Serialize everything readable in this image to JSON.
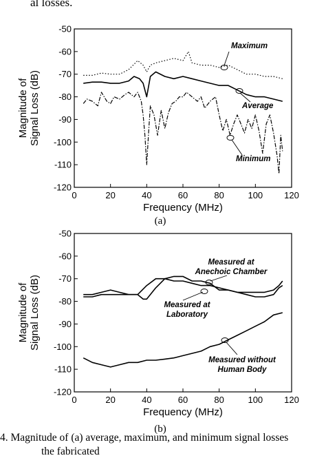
{
  "top_text": "al losses.",
  "caption_line1": "4. Magnitude of (a) average, maximum, and minimum signal losses",
  "caption_line2": "the fabricated",
  "chart_data": [
    {
      "type": "line",
      "panel_label": "(a)",
      "xlabel": "Frequency (MHz)",
      "ylabel": "Magnitude of Signal Loss (dB)",
      "ylabel_line1": "Magnitude of",
      "ylabel_line2": "Signal Loss (dB)",
      "xlim": [
        0,
        120
      ],
      "ylim": [
        -120,
        -50
      ],
      "xticks": [
        0,
        20,
        40,
        60,
        80,
        100,
        120
      ],
      "yticks": [
        -50,
        -60,
        -70,
        -80,
        -90,
        -100,
        -110,
        -120
      ],
      "grid": false,
      "series": [
        {
          "name": "Maximum",
          "style": "dotted",
          "x": [
            5,
            10,
            15,
            20,
            25,
            30,
            35,
            38,
            40,
            42,
            45,
            50,
            55,
            60,
            63,
            65,
            70,
            75,
            80,
            85,
            90,
            95,
            100,
            105,
            110,
            115
          ],
          "y": [
            -70.5,
            -70.5,
            -69.5,
            -70,
            -70,
            -68,
            -64,
            -66,
            -69,
            -66,
            -65,
            -64,
            -63,
            -64,
            -60,
            -65,
            -66,
            -66,
            -67,
            -66,
            -68,
            -70,
            -70,
            -71,
            -71,
            -72
          ]
        },
        {
          "name": "Average",
          "style": "solid",
          "x": [
            5,
            10,
            15,
            20,
            25,
            30,
            33,
            36,
            38,
            40,
            42,
            45,
            50,
            55,
            60,
            65,
            70,
            75,
            80,
            85,
            90,
            95,
            100,
            105,
            110,
            115
          ],
          "y": [
            -74,
            -73.5,
            -73.5,
            -74,
            -74,
            -73,
            -71,
            -72,
            -74,
            -80,
            -71,
            -69,
            -71,
            -72,
            -71,
            -72,
            -73,
            -74,
            -75,
            -75,
            -77,
            -79,
            -80,
            -80,
            -81,
            -82
          ]
        },
        {
          "name": "Minimum",
          "style": "dashdot",
          "x": [
            5,
            7,
            10,
            13,
            15,
            18,
            20,
            22,
            25,
            28,
            30,
            33,
            35,
            37,
            38,
            39,
            40,
            41,
            42,
            44,
            46,
            48,
            50,
            52,
            54,
            56,
            58,
            60,
            62,
            65,
            68,
            70,
            72,
            75,
            78,
            80,
            82,
            84,
            86,
            88,
            90,
            92,
            94,
            96,
            98,
            100,
            102,
            104,
            106,
            108,
            110,
            112,
            113,
            114,
            115
          ],
          "y": [
            -83,
            -81,
            -82,
            -84,
            -78,
            -82,
            -83,
            -80,
            -81,
            -79,
            -78,
            -80,
            -78,
            -82,
            -88,
            -97,
            -110,
            -96,
            -84,
            -88,
            -97,
            -86,
            -94,
            -87,
            -83,
            -82,
            -80,
            -80,
            -78,
            -80,
            -82,
            -80,
            -85,
            -82,
            -80,
            -88,
            -95,
            -90,
            -97,
            -92,
            -88,
            -92,
            -96,
            -90,
            -94,
            -88,
            -95,
            -105,
            -92,
            -88,
            -96,
            -106,
            -114,
            -97,
            -104
          ]
        }
      ],
      "annotations": [
        "Maximum",
        "Average",
        "Minimum"
      ]
    },
    {
      "type": "line",
      "panel_label": "(b)",
      "xlabel": "Frequency (MHz)",
      "ylabel": "Magnitude of Signal Loss (dB)",
      "ylabel_line1": "Magnitude of",
      "ylabel_line2": "Signal Loss (dB)",
      "xlim": [
        0,
        120
      ],
      "ylim": [
        -120,
        -50
      ],
      "xticks": [
        0,
        20,
        40,
        60,
        80,
        100,
        120
      ],
      "yticks": [
        -50,
        -60,
        -70,
        -80,
        -90,
        -100,
        -110,
        -120
      ],
      "grid": false,
      "series": [
        {
          "name": "Measured at Anechoic Chamber",
          "style": "solid",
          "x": [
            5,
            10,
            15,
            20,
            25,
            30,
            35,
            38,
            40,
            45,
            50,
            55,
            60,
            65,
            70,
            75,
            80,
            85,
            90,
            95,
            100,
            105,
            110,
            113,
            115
          ],
          "y": [
            -77,
            -77,
            -76,
            -75,
            -76,
            -77,
            -77,
            -79,
            -79,
            -74,
            -70,
            -69,
            -69,
            -71,
            -71,
            -72,
            -75,
            -75,
            -76,
            -77,
            -78,
            -78,
            -77,
            -74,
            -73
          ]
        },
        {
          "name": "Measured at Laboratory",
          "style": "solid",
          "x": [
            5,
            10,
            15,
            20,
            25,
            30,
            35,
            40,
            45,
            50,
            55,
            60,
            65,
            70,
            75,
            80,
            85,
            90,
            95,
            100,
            105,
            110,
            113,
            115
          ],
          "y": [
            -78,
            -78,
            -77,
            -77,
            -77,
            -77,
            -77,
            -73,
            -70,
            -70,
            -71,
            -71,
            -72,
            -73,
            -73,
            -74,
            -75,
            -76,
            -76,
            -76,
            -76,
            -75,
            -73,
            -71
          ]
        },
        {
          "name": "Measured without Human Body",
          "style": "solid",
          "x": [
            5,
            10,
            15,
            20,
            25,
            30,
            35,
            40,
            45,
            50,
            55,
            60,
            65,
            70,
            75,
            80,
            85,
            90,
            95,
            100,
            105,
            110,
            115
          ],
          "y": [
            -105,
            -107,
            -108,
            -109,
            -108,
            -107,
            -107,
            -106,
            -106,
            -105.5,
            -105,
            -104,
            -103,
            -102,
            -100,
            -99,
            -97,
            -95,
            -93,
            -91,
            -89,
            -86,
            -85
          ]
        }
      ],
      "annotations": [
        "Measured at Anechoic Chamber",
        "Measured at Laboratory",
        "Measured without Human Body"
      ]
    }
  ]
}
